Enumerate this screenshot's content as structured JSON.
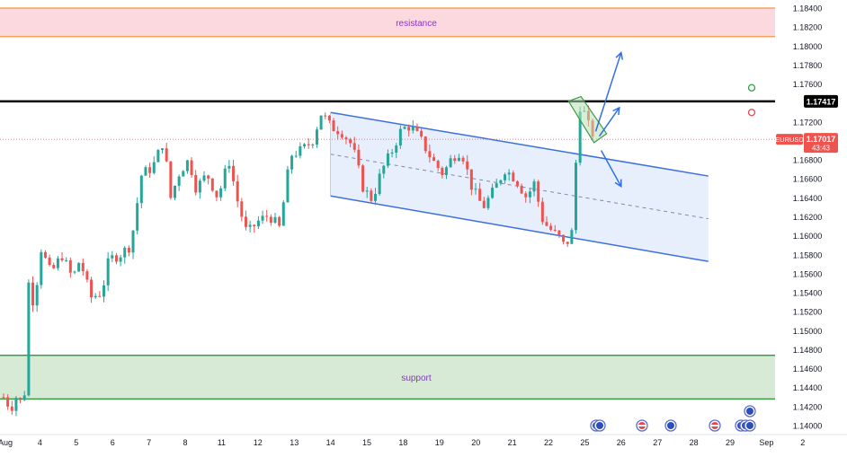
{
  "chart_data": {
    "type": "candlestick",
    "symbol": "EURUSD",
    "last_price": "1.17017",
    "countdown": "43:43",
    "level_price": "1.17417",
    "y_range": [
      1.139,
      1.1845
    ],
    "y_ticks": [
      "1.18400",
      "1.18200",
      "1.18000",
      "1.17800",
      "1.17600",
      "1.17417",
      "1.17200",
      "1.17017",
      "1.16800",
      "1.16600",
      "1.16400",
      "1.16200",
      "1.16000",
      "1.15800",
      "1.15600",
      "1.15400",
      "1.15200",
      "1.15000",
      "1.14800",
      "1.14600",
      "1.14400",
      "1.14200",
      "1.14000"
    ],
    "x_ticks": [
      {
        "label": "Aug",
        "day": 3
      },
      {
        "label": "4",
        "day": 4
      },
      {
        "label": "5",
        "day": 5
      },
      {
        "label": "6",
        "day": 6
      },
      {
        "label": "7",
        "day": 7
      },
      {
        "label": "8",
        "day": 8
      },
      {
        "label": "11",
        "day": 9
      },
      {
        "label": "12",
        "day": 10
      },
      {
        "label": "13",
        "day": 11
      },
      {
        "label": "14",
        "day": 12
      },
      {
        "label": "15",
        "day": 13
      },
      {
        "label": "18",
        "day": 14
      },
      {
        "label": "19",
        "day": 15
      },
      {
        "label": "20",
        "day": 16
      },
      {
        "label": "21",
        "day": 17
      },
      {
        "label": "22",
        "day": 18
      },
      {
        "label": "25",
        "day": 19
      },
      {
        "label": "26",
        "day": 20
      },
      {
        "label": "27",
        "day": 21
      },
      {
        "label": "28",
        "day": 22
      },
      {
        "label": "29",
        "day": 23
      },
      {
        "label": "Sep",
        "day": 24
      },
      {
        "label": "2",
        "day": 25
      }
    ],
    "zones": [
      {
        "label": "resistance",
        "from": 1.181,
        "to": 1.184,
        "fill": "#fbd9df",
        "border": "#f7a35c"
      },
      {
        "label": "support",
        "from": 1.1428,
        "to": 1.1474,
        "fill": "#d6ead6",
        "border": "#3d9a4a"
      }
    ],
    "key_level": 1.17417,
    "channel": {
      "upper": [
        [
          12.0,
          1.173
        ],
        [
          22.4,
          1.1663
        ]
      ],
      "lower": [
        [
          12.0,
          1.1642
        ],
        [
          22.4,
          1.1573
        ]
      ],
      "color": "#3b6fe0"
    },
    "price_path": [
      [
        3.0,
        1.143
      ],
      [
        3.2,
        1.1418
      ],
      [
        3.4,
        1.1435
      ],
      [
        3.55,
        1.141
      ],
      [
        3.7,
        1.156
      ],
      [
        3.85,
        1.152
      ],
      [
        4.0,
        1.159
      ],
      [
        4.3,
        1.156
      ],
      [
        4.6,
        1.158
      ],
      [
        4.9,
        1.1555
      ],
      [
        5.1,
        1.1575
      ],
      [
        5.4,
        1.1535
      ],
      [
        5.7,
        1.154
      ],
      [
        5.9,
        1.1575
      ],
      [
        6.2,
        1.158
      ],
      [
        6.5,
        1.159
      ],
      [
        6.8,
        1.1665
      ],
      [
        7.1,
        1.1672
      ],
      [
        7.4,
        1.17
      ],
      [
        7.6,
        1.164
      ],
      [
        7.85,
        1.1668
      ],
      [
        8.1,
        1.168
      ],
      [
        8.3,
        1.165
      ],
      [
        8.6,
        1.1665
      ],
      [
        8.9,
        1.164
      ],
      [
        9.2,
        1.168
      ],
      [
        9.45,
        1.1635
      ],
      [
        9.7,
        1.1602
      ],
      [
        10.0,
        1.1615
      ],
      [
        10.3,
        1.1622
      ],
      [
        10.6,
        1.1608
      ],
      [
        10.9,
        1.1685
      ],
      [
        11.2,
        1.169
      ],
      [
        11.5,
        1.17
      ],
      [
        11.75,
        1.173
      ],
      [
        12.0,
        1.1715
      ],
      [
        12.3,
        1.171
      ],
      [
        12.6,
        1.1695
      ],
      [
        12.9,
        1.165
      ],
      [
        13.15,
        1.1638
      ],
      [
        13.4,
        1.1668
      ],
      [
        13.7,
        1.169
      ],
      [
        13.95,
        1.1712
      ],
      [
        14.2,
        1.1716
      ],
      [
        14.5,
        1.17
      ],
      [
        14.8,
        1.168
      ],
      [
        15.1,
        1.1665
      ],
      [
        15.35,
        1.1683
      ],
      [
        15.6,
        1.169
      ],
      [
        15.9,
        1.165
      ],
      [
        16.2,
        1.163
      ],
      [
        16.5,
        1.1648
      ],
      [
        16.8,
        1.167
      ],
      [
        17.1,
        1.166
      ],
      [
        17.4,
        1.164
      ],
      [
        17.6,
        1.1656
      ],
      [
        17.85,
        1.1615
      ],
      [
        18.1,
        1.1605
      ],
      [
        18.3,
        1.1598
      ],
      [
        18.45,
        1.1588
      ],
      [
        18.6,
        1.16
      ],
      [
        18.72,
        1.161
      ],
      [
        18.78,
        1.1725
      ],
      [
        18.88,
        1.1738
      ],
      [
        19.0,
        1.1728
      ],
      [
        19.15,
        1.171
      ],
      [
        19.3,
        1.1705
      ]
    ],
    "scenarios": [
      {
        "points": [
          [
            19.3,
            1.171
          ],
          [
            20.0,
            1.1793
          ]
        ]
      },
      {
        "points": [
          [
            19.4,
            1.1705
          ],
          [
            19.95,
            1.1735
          ]
        ]
      },
      {
        "points": [
          [
            19.45,
            1.169
          ],
          [
            20.0,
            1.1652
          ]
        ]
      }
    ],
    "highlight_box": {
      "from_day": 18.55,
      "to_day": 19.6,
      "from": 1.1702,
      "to": 1.1742
    },
    "indicators": {
      "green_dot": 1.1756,
      "red_dot": 1.173
    },
    "colors": {
      "up": "#26a69a",
      "down": "#ef5350",
      "level": "#000000",
      "price_line": "#ef5350",
      "arrow": "#2f6ee8",
      "annot_text": "#8a35c9"
    }
  }
}
